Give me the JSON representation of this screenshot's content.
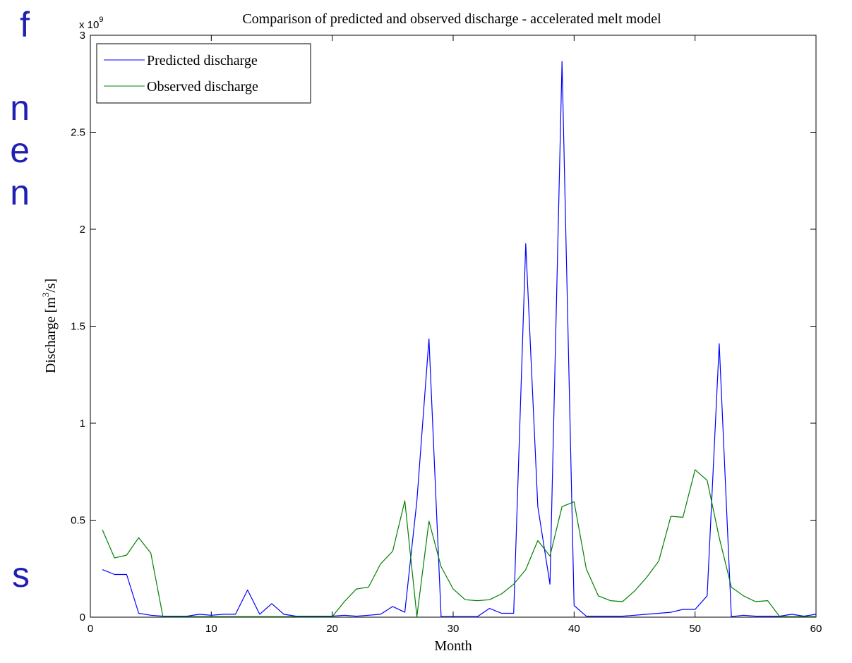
{
  "slide_edge_letters": [
    "f",
    "n",
    "e",
    "n",
    "s"
  ],
  "chart_data": {
    "type": "line",
    "title": "Comparison of predicted and observed discharge - accelerated melt model",
    "xlabel": "Month",
    "ylabel": "Discharge [m^3/s]",
    "ylabel_parts": {
      "before": "Discharge [m",
      "sup": "3",
      "after": "/s]"
    },
    "y_multiplier_label": "x 10",
    "y_multiplier_exponent": "9",
    "xlim": [
      0,
      60
    ],
    "ylim": [
      0,
      3
    ],
    "x_ticks": [
      0,
      10,
      20,
      30,
      40,
      50,
      60
    ],
    "y_ticks": [
      0,
      0.5,
      1,
      1.5,
      2,
      2.5,
      3
    ],
    "y_tick_labels": [
      "0",
      "0.5",
      "1",
      "1.5",
      "2",
      "2.5",
      "3"
    ],
    "grid": false,
    "legend_position": "top-left",
    "x": [
      1,
      2,
      3,
      4,
      5,
      6,
      7,
      8,
      9,
      10,
      11,
      12,
      13,
      14,
      15,
      16,
      17,
      18,
      19,
      20,
      21,
      22,
      23,
      24,
      25,
      26,
      27,
      28,
      29,
      30,
      31,
      32,
      33,
      34,
      35,
      36,
      37,
      38,
      39,
      40,
      41,
      42,
      43,
      44,
      45,
      46,
      47,
      48,
      49,
      50,
      51,
      52,
      53,
      54,
      55,
      56,
      57,
      58,
      59,
      60
    ],
    "series": [
      {
        "name": "Predicted discharge",
        "color": "#0000ff",
        "values": [
          0.245,
          0.22,
          0.22,
          0.02,
          0.01,
          0.005,
          0.005,
          0.005,
          0.015,
          0.01,
          0.015,
          0.015,
          0.14,
          0.015,
          0.07,
          0.015,
          0.005,
          0.005,
          0.005,
          0.005,
          0.01,
          0.005,
          0.01,
          0.015,
          0.055,
          0.025,
          0.6,
          1.435,
          0.003,
          0.003,
          0.003,
          0.003,
          0.045,
          0.02,
          0.02,
          1.925,
          0.57,
          0.17,
          2.865,
          0.06,
          0.005,
          0.005,
          0.005,
          0.005,
          0.01,
          0.015,
          0.02,
          0.025,
          0.04,
          0.04,
          0.11,
          1.41,
          0.003,
          0.01,
          0.005,
          0.005,
          0.005,
          0.015,
          0.005,
          0.015
        ]
      },
      {
        "name": "Observed discharge",
        "color": "#008000",
        "values": [
          0.45,
          0.305,
          0.32,
          0.41,
          0.33,
          0.003,
          0.003,
          0.003,
          0.003,
          0.003,
          0.003,
          0.003,
          0.003,
          0.003,
          0.003,
          0.003,
          0.003,
          0.003,
          0.003,
          0.003,
          0.08,
          0.145,
          0.155,
          0.275,
          0.34,
          0.6,
          0.003,
          0.495,
          0.26,
          0.145,
          0.09,
          0.085,
          0.09,
          0.12,
          0.17,
          0.245,
          0.395,
          0.315,
          0.57,
          0.595,
          0.25,
          0.11,
          0.085,
          0.08,
          0.135,
          0.205,
          0.29,
          0.52,
          0.515,
          0.76,
          0.705,
          0.41,
          0.155,
          0.11,
          0.08,
          0.085,
          0.003,
          0.003,
          0.003,
          0.003
        ]
      }
    ]
  }
}
